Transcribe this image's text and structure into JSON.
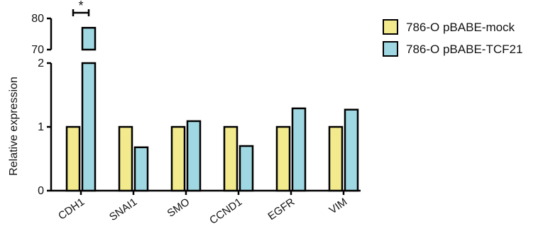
{
  "chart_data": {
    "type": "bar",
    "title": "",
    "xlabel": "",
    "ylabel": "Relative expression",
    "broken_y_axis": true,
    "y_lower_range": [
      0,
      2
    ],
    "y_upper_range": [
      70,
      80
    ],
    "y_ticks_lower": [
      "0",
      "1",
      "2"
    ],
    "y_ticks_upper": [
      "70",
      "80"
    ],
    "categories": [
      "CDH1",
      "SNAI1",
      "SMO",
      "CCND1",
      "EGFR",
      "VIM"
    ],
    "series": [
      {
        "name": "786-O pBABE-mock",
        "color": "#f2ea8c",
        "values": [
          1.0,
          1.0,
          1.0,
          1.0,
          1.0,
          1.0
        ]
      },
      {
        "name": "786-O pBABE-TCF21",
        "color": "#9fd8e3",
        "values": [
          77.0,
          0.68,
          1.09,
          0.7,
          1.29,
          1.27
        ]
      }
    ],
    "annotations": [
      {
        "type": "significance",
        "text": "*",
        "category": "CDH1"
      }
    ],
    "legend_position": "top-right",
    "grid": false
  }
}
